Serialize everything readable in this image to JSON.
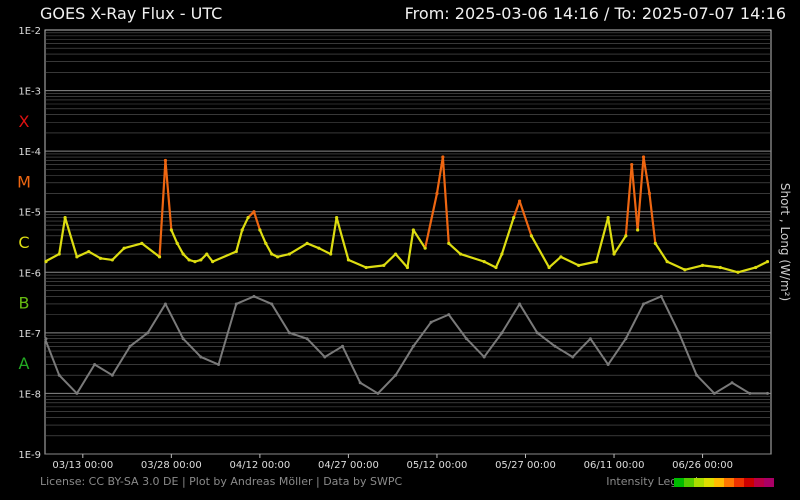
{
  "title": "GOES X-Ray Flux - UTC",
  "range": "From: 2025-03-06 14:16  /  To: 2025-07-07 14:16",
  "footer": {
    "credits": "License: CC BY-SA 3.0 DE | Plot by Andreas Möller | Data by SWPC",
    "legend_label": "Intensity Legend"
  },
  "legend_colors": [
    "#00bb00",
    "#55cc00",
    "#aadd00",
    "#dddd00",
    "#ffbb00",
    "#ff7700",
    "#ee3300",
    "#cc0000",
    "#bb0044",
    "#aa0066"
  ],
  "colors": {
    "background": "#000000",
    "grid": "#5a5a5a",
    "short_series": "#7a7a7a",
    "class_X": "#dd1111",
    "class_M": "#ee6611",
    "class_C": "#dddd11",
    "class_B": "#66bb11",
    "class_A": "#22aa22"
  },
  "chart_data": {
    "type": "line",
    "title": "GOES X-Ray Flux - UTC",
    "ylabel": "Short , Long (W/m²)",
    "y_scale": "log",
    "ylim": [
      1e-09,
      0.01
    ],
    "y_ticks": [
      "1E-9",
      "1E-8",
      "1E-7",
      "1E-6",
      "1E-5",
      "1E-4",
      "1E-3",
      "1E-2"
    ],
    "flare_classes": [
      {
        "label": "X",
        "value": 0.0001
      },
      {
        "label": "M",
        "value": 1e-05
      },
      {
        "label": "C",
        "value": 1e-06
      },
      {
        "label": "B",
        "value": 1e-07
      },
      {
        "label": "A",
        "value": 1e-08
      }
    ],
    "x_range": [
      "2025-03-06 14:16",
      "2025-07-07 14:16"
    ],
    "x_ticks": [
      "03/13 00:00",
      "03/28 00:00",
      "04/12 00:00",
      "04/27 00:00",
      "05/12 00:00",
      "05/27 00:00",
      "06/11 00:00",
      "06/26 00:00"
    ],
    "grid": true,
    "series": [
      {
        "key": "long",
        "x": [
          "03-06",
          "03-09",
          "03-10",
          "03-12",
          "03-14",
          "03-16",
          "03-18",
          "03-20",
          "03-23",
          "03-26",
          "03-27",
          "03-28",
          "03-29",
          "03-30",
          "03-31",
          "04-01",
          "04-02",
          "04-03",
          "04-04",
          "04-08",
          "04-09",
          "04-10",
          "04-11",
          "04-12",
          "04-13",
          "04-14",
          "04-15",
          "04-17",
          "04-20",
          "04-22",
          "04-24",
          "04-25",
          "04-27",
          "04-30",
          "05-03",
          "05-05",
          "05-07",
          "05-08",
          "05-10",
          "05-12",
          "05-13",
          "05-14",
          "05-16",
          "05-20",
          "05-22",
          "05-23",
          "05-25",
          "05-26",
          "05-28",
          "05-31",
          "06-02",
          "06-05",
          "06-08",
          "06-10",
          "06-11",
          "06-13",
          "06-14",
          "06-15",
          "06-16",
          "06-17",
          "06-18",
          "06-20",
          "06-23",
          "06-26",
          "06-29",
          "07-02",
          "07-05",
          "07-07"
        ],
        "y": [
          1.5e-06,
          2e-06,
          8e-06,
          1.8e-06,
          2.2e-06,
          1.7e-06,
          1.6e-06,
          2.5e-06,
          3e-06,
          1.8e-06,
          7e-05,
          5e-06,
          3e-06,
          2e-06,
          1.6e-06,
          1.5e-06,
          1.6e-06,
          2e-06,
          1.5e-06,
          2.2e-06,
          5e-06,
          8e-06,
          1e-05,
          5e-06,
          3e-06,
          2e-06,
          1.8e-06,
          2e-06,
          3e-06,
          2.5e-06,
          2e-06,
          8e-06,
          1.6e-06,
          1.2e-06,
          1.3e-06,
          2e-06,
          1.2e-06,
          5e-06,
          2.5e-06,
          2e-05,
          8e-05,
          3e-06,
          2e-06,
          1.5e-06,
          1.2e-06,
          2e-06,
          8e-06,
          1.5e-05,
          4e-06,
          1.2e-06,
          1.8e-06,
          1.3e-06,
          1.5e-06,
          8e-06,
          2e-06,
          4e-06,
          6e-05,
          5e-06,
          8e-05,
          2e-05,
          3e-06,
          1.5e-06,
          1.1e-06,
          1.3e-06,
          1.2e-06,
          1e-06,
          1.2e-06,
          1.5e-06
        ]
      },
      {
        "key": "short",
        "x": [
          "03-06",
          "03-09",
          "03-12",
          "03-15",
          "03-18",
          "03-21",
          "03-24",
          "03-27",
          "03-30",
          "04-02",
          "04-05",
          "04-08",
          "04-11",
          "04-14",
          "04-17",
          "04-20",
          "04-23",
          "04-26",
          "04-29",
          "05-02",
          "05-05",
          "05-08",
          "05-11",
          "05-14",
          "05-17",
          "05-20",
          "05-23",
          "05-26",
          "05-29",
          "06-01",
          "06-04",
          "06-07",
          "06-10",
          "06-13",
          "06-16",
          "06-19",
          "06-22",
          "06-25",
          "06-28",
          "07-01",
          "07-04",
          "07-07"
        ],
        "y": [
          8e-08,
          2e-08,
          1e-08,
          3e-08,
          2e-08,
          6e-08,
          1e-07,
          3e-07,
          8e-08,
          4e-08,
          3e-08,
          3e-07,
          4e-07,
          3e-07,
          1e-07,
          8e-08,
          4e-08,
          6e-08,
          1.5e-08,
          1e-08,
          2e-08,
          6e-08,
          1.5e-07,
          2e-07,
          8e-08,
          4e-08,
          1e-07,
          3e-07,
          1e-07,
          6e-08,
          4e-08,
          8e-08,
          3e-08,
          8e-08,
          3e-07,
          4e-07,
          1e-07,
          2e-08,
          1e-08,
          1.5e-08,
          1e-08,
          1e-08
        ]
      }
    ]
  }
}
